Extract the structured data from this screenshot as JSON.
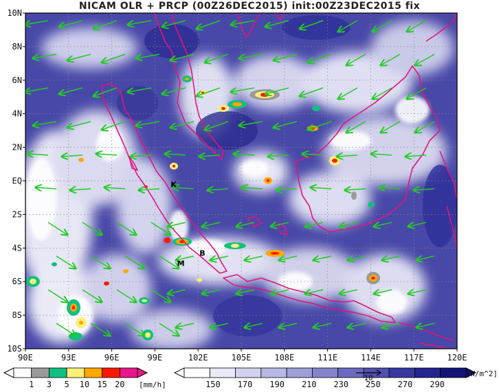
{
  "title": "NICAM OLR + PRCP (00Z26DEC2015) init:00Z23DEC2015 fix",
  "map": {
    "lon_min": 90,
    "lon_max": 120,
    "lat_min": -10,
    "lat_max": 10,
    "lat_ticks": [
      "10N",
      "8N",
      "6N",
      "4N",
      "2N",
      "EQ",
      "2S",
      "4S",
      "6S",
      "8S",
      "10S"
    ],
    "lon_ticks": [
      "90E",
      "93E",
      "96E",
      "99E",
      "102E",
      "105E",
      "108E",
      "111E",
      "114E",
      "117E",
      "120E"
    ],
    "grid": "dashed",
    "markers": [
      {
        "label": "K",
        "lon": 100.3,
        "lat": -0.2
      },
      {
        "label": "M",
        "lon": 100.8,
        "lat": -4.9
      },
      {
        "label": "B",
        "lon": 102.3,
        "lat": -4.3
      }
    ]
  },
  "legend_precip": {
    "unit": "[mm/h]",
    "labels": [
      "1",
      "3",
      "5",
      "10",
      "15",
      "20"
    ],
    "colors": [
      "#ffffff",
      "#9a9a9a",
      "#10c080",
      "#fff07a",
      "#ffa800",
      "#ff1800",
      "#e8168a"
    ]
  },
  "legend_olr": {
    "unit": "[W/m^2]",
    "labels": [
      "150",
      "170",
      "190",
      "210",
      "230",
      "250",
      "270",
      "290"
    ],
    "vector_ref": "10",
    "colors": [
      "#ffffff",
      "#eaeaf6",
      "#d2d2ee",
      "#b8b8e4",
      "#9e9ed8",
      "#8484cc",
      "#6a6ac0",
      "#5050b0",
      "#3838a0",
      "#242490",
      "#141478"
    ]
  },
  "colors": {
    "coastline": "#e0157d",
    "wind_vector": "#22cc22",
    "background_olr": "#4848a8"
  }
}
